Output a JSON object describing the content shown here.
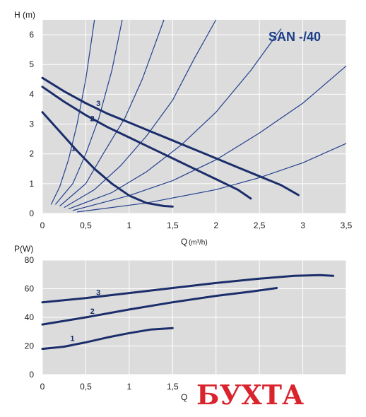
{
  "chart_data": [
    {
      "type": "line",
      "title": "SAN -/40",
      "ylabel": "H (m)",
      "xlabel_main": "Q",
      "xlabel_unit": "(m³/h)",
      "xlim": [
        0,
        3.5
      ],
      "ylim": [
        0,
        6.5
      ],
      "xticks": [
        0,
        0.5,
        1,
        1.5,
        2,
        2.5,
        3,
        3.5
      ],
      "xtick_labels": [
        "0",
        "0,5",
        "1",
        "1,5",
        "2",
        "2,5",
        "3",
        "3,5"
      ],
      "yticks": [
        0,
        1,
        2,
        3,
        4,
        5,
        6
      ],
      "ytick_labels": [
        "0",
        "1",
        "2",
        "3",
        "4",
        "5",
        "6"
      ],
      "grid": true,
      "series": [
        {
          "name": "1",
          "points": [
            [
              0,
              3.4
            ],
            [
              0.2,
              2.75
            ],
            [
              0.4,
              2.1
            ],
            [
              0.6,
              1.5
            ],
            [
              0.8,
              1.0
            ],
            [
              1.0,
              0.6
            ],
            [
              1.2,
              0.35
            ],
            [
              1.4,
              0.25
            ],
            [
              1.5,
              0.23
            ]
          ],
          "label_at": [
            0.33,
            2.1
          ]
        },
        {
          "name": "2",
          "points": [
            [
              0,
              4.25
            ],
            [
              0.25,
              3.75
            ],
            [
              0.5,
              3.3
            ],
            [
              0.75,
              2.9
            ],
            [
              1.0,
              2.55
            ],
            [
              1.25,
              2.2
            ],
            [
              1.5,
              1.85
            ],
            [
              1.75,
              1.5
            ],
            [
              2.0,
              1.15
            ],
            [
              2.25,
              0.8
            ],
            [
              2.4,
              0.5
            ]
          ],
          "label_at": [
            0.55,
            3.1
          ]
        },
        {
          "name": "3",
          "points": [
            [
              0,
              4.55
            ],
            [
              0.25,
              4.1
            ],
            [
              0.5,
              3.7
            ],
            [
              0.75,
              3.35
            ],
            [
              1.0,
              3.05
            ],
            [
              1.25,
              2.75
            ],
            [
              1.5,
              2.45
            ],
            [
              1.75,
              2.15
            ],
            [
              2.0,
              1.85
            ],
            [
              2.25,
              1.55
            ],
            [
              2.5,
              1.25
            ],
            [
              2.75,
              0.95
            ],
            [
              2.95,
              0.62
            ]
          ],
          "label_at": [
            0.62,
            3.6
          ]
        }
      ],
      "system_curves": [
        [
          [
            0.1,
            0.3
          ],
          [
            0.2,
            0.9
          ],
          [
            0.3,
            1.8
          ],
          [
            0.4,
            3.0
          ],
          [
            0.5,
            4.5
          ],
          [
            0.6,
            6.5
          ]
        ],
        [
          [
            0.15,
            0.3
          ],
          [
            0.35,
            1.0
          ],
          [
            0.5,
            2.0
          ],
          [
            0.65,
            3.2
          ],
          [
            0.8,
            4.8
          ],
          [
            0.92,
            6.5
          ]
        ],
        [
          [
            0.2,
            0.25
          ],
          [
            0.5,
            1.0
          ],
          [
            0.7,
            2.0
          ],
          [
            0.95,
            3.2
          ],
          [
            1.15,
            4.5
          ],
          [
            1.4,
            6.5
          ]
        ],
        [
          [
            0.25,
            0.2
          ],
          [
            0.6,
            0.8
          ],
          [
            0.9,
            1.6
          ],
          [
            1.2,
            2.6
          ],
          [
            1.5,
            3.8
          ],
          [
            1.75,
            5.2
          ],
          [
            2.0,
            6.5
          ]
        ],
        [
          [
            0.3,
            0.15
          ],
          [
            0.8,
            0.7
          ],
          [
            1.2,
            1.4
          ],
          [
            1.6,
            2.3
          ],
          [
            2.0,
            3.4
          ],
          [
            2.4,
            4.8
          ],
          [
            2.75,
            6.2
          ]
        ],
        [
          [
            0.35,
            0.1
          ],
          [
            1.0,
            0.6
          ],
          [
            1.5,
            1.1
          ],
          [
            2.0,
            1.8
          ],
          [
            2.5,
            2.7
          ],
          [
            3.0,
            3.7
          ],
          [
            3.5,
            4.95
          ]
        ],
        [
          [
            0.4,
            0.05
          ],
          [
            1.2,
            0.35
          ],
          [
            2.0,
            0.8
          ],
          [
            2.5,
            1.2
          ],
          [
            3.0,
            1.7
          ],
          [
            3.5,
            2.35
          ]
        ]
      ]
    },
    {
      "type": "line",
      "ylabel": "P(W)",
      "xlabel_main": "Q",
      "xlim": [
        0,
        3.5
      ],
      "ylim": [
        0,
        80
      ],
      "xticks": [
        0,
        0.5,
        1,
        1.5
      ],
      "xtick_labels": [
        "0",
        "0,5",
        "1",
        "1,5"
      ],
      "yticks": [
        0,
        20,
        40,
        60,
        80
      ],
      "ytick_labels": [
        "0",
        "20",
        "40",
        "60",
        "80"
      ],
      "grid": true,
      "series": [
        {
          "name": "1",
          "points": [
            [
              0,
              18
            ],
            [
              0.25,
              19.5
            ],
            [
              0.5,
              22.5
            ],
            [
              0.75,
              26
            ],
            [
              1.0,
              29
            ],
            [
              1.25,
              31.5
            ],
            [
              1.5,
              32.5
            ]
          ],
          "label_at": [
            0.32,
            23.5
          ]
        },
        {
          "name": "2",
          "points": [
            [
              0,
              35
            ],
            [
              0.5,
              40
            ],
            [
              1.0,
              45.5
            ],
            [
              1.5,
              50.5
            ],
            [
              2.0,
              55
            ],
            [
              2.4,
              58
            ],
            [
              2.7,
              60.5
            ]
          ],
          "label_at": [
            0.55,
            42.5
          ]
        },
        {
          "name": "3",
          "points": [
            [
              0,
              50.5
            ],
            [
              0.5,
              53.5
            ],
            [
              1.0,
              57
            ],
            [
              1.5,
              60.5
            ],
            [
              2.0,
              64
            ],
            [
              2.5,
              67
            ],
            [
              2.9,
              69
            ],
            [
              3.2,
              69.5
            ],
            [
              3.35,
              69
            ]
          ],
          "label_at": [
            0.62,
            55.5
          ]
        }
      ]
    }
  ],
  "watermark": "БУХТА"
}
